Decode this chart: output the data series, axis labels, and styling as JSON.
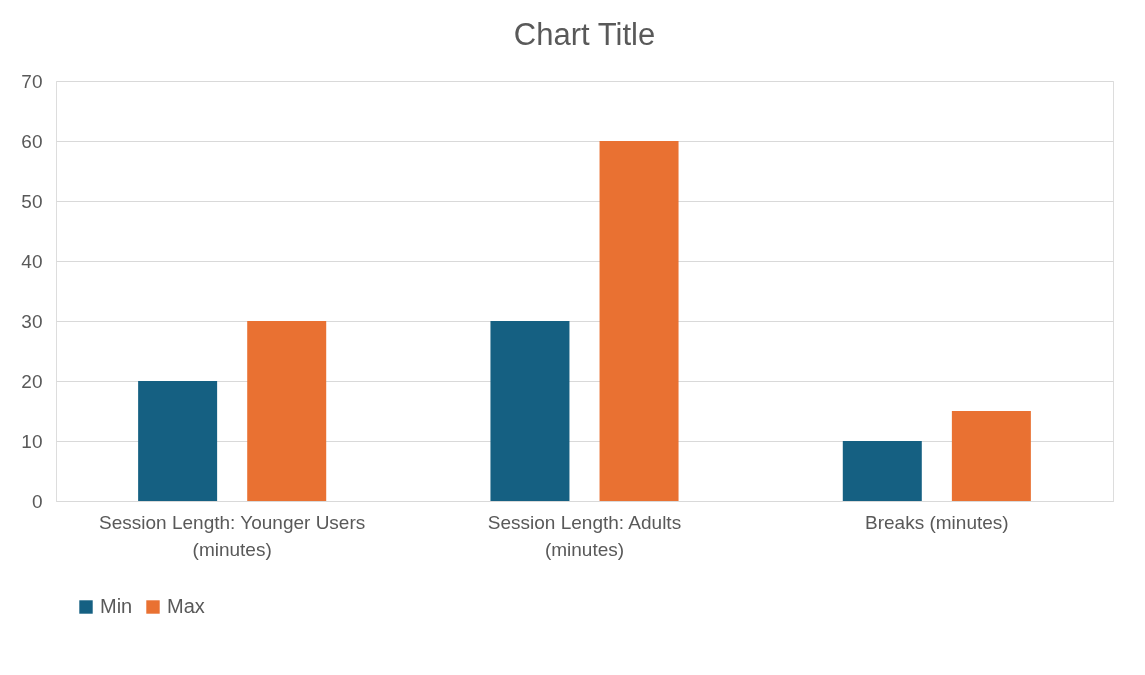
{
  "chart_data": {
    "type": "bar",
    "title": "Chart Title",
    "categories": [
      "Session Length: Younger Users (minutes)",
      "Session Length: Adults (minutes)",
      "Breaks  (minutes)"
    ],
    "series": [
      {
        "name": "Min",
        "color": "#156082",
        "values": [
          20,
          30,
          10
        ]
      },
      {
        "name": "Max",
        "color": "#e97132",
        "values": [
          30,
          60,
          15
        ]
      }
    ],
    "ylim": [
      0,
      70
    ],
    "yticks": [
      0,
      10,
      20,
      30,
      40,
      50,
      60,
      70
    ],
    "grid": "y",
    "legend": "bottom"
  }
}
